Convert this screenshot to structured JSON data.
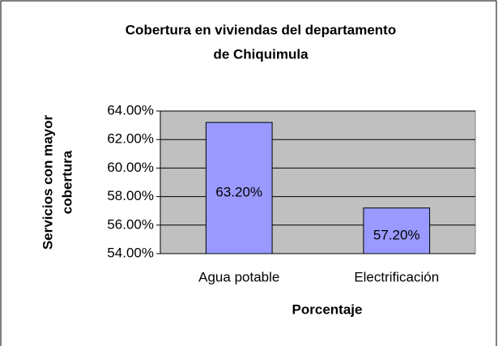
{
  "chart_data": {
    "type": "bar",
    "title": [
      "Cobertura en viviendas del departamento",
      "de Chiquimula"
    ],
    "ylabel": [
      "Servicios con mayor",
      "cobertura"
    ],
    "xlabel": "Porcentaje",
    "categories": [
      "Agua potable",
      "Electrificación"
    ],
    "values": [
      63.2,
      57.2
    ],
    "value_labels": [
      "63.20%",
      "57.20%"
    ],
    "color": "#9999ff",
    "ylim": [
      54,
      64
    ],
    "yticks": [
      {
        "value": 54,
        "label": "54.00%"
      },
      {
        "value": 56,
        "label": "56.00%"
      },
      {
        "value": 58,
        "label": "58.00%"
      },
      {
        "value": 60,
        "label": "60.00%"
      },
      {
        "value": 62,
        "label": "62.00%"
      },
      {
        "value": 64,
        "label": "64.00%"
      }
    ],
    "grid": true
  }
}
